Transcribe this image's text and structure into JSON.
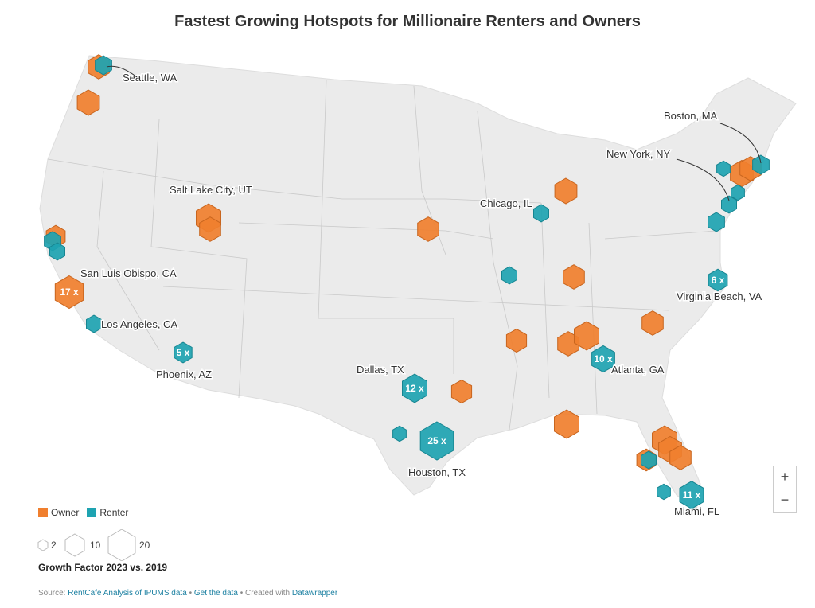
{
  "title": "Fastest Growing Hotspots for Millionaire Renters and Owners",
  "colors": {
    "owner": "#f07f2e",
    "renter": "#1ea3b1",
    "land": "#ebebeb",
    "border": "#ffffff"
  },
  "legend": {
    "owner": "Owner",
    "renter": "Renter",
    "sizes": [
      "2",
      "10",
      "20"
    ],
    "title": "Growth Factor 2023 vs. 2019"
  },
  "city_labels": [
    "Seattle, WA",
    "Salt Lake City, UT",
    "San Luis Obispo, CA",
    "Los Angeles, CA",
    "Phoenix, AZ",
    "Dallas, TX",
    "Houston, TX",
    "Chicago, IL",
    "Atlanta, GA",
    "Miami, FL",
    "Virginia Beach, VA",
    "New York, NY",
    "Boston, MA"
  ],
  "markers": [
    {
      "type": "owner",
      "value": 8
    },
    {
      "type": "renter",
      "value": 4
    },
    {
      "type": "owner",
      "value": 9
    },
    {
      "type": "owner",
      "value": 12
    },
    {
      "type": "owner",
      "value": 8
    },
    {
      "type": "owner",
      "value": 6
    },
    {
      "type": "renter",
      "value": 4
    },
    {
      "type": "renter",
      "value": 3
    },
    {
      "type": "owner",
      "value": 17,
      "label": "17 x"
    },
    {
      "type": "renter",
      "value": 3
    },
    {
      "type": "renter",
      "value": 5,
      "label": "5 x"
    },
    {
      "type": "owner",
      "value": 8
    },
    {
      "type": "renter",
      "value": 3
    },
    {
      "type": "owner",
      "value": 9
    },
    {
      "type": "renter",
      "value": 3
    },
    {
      "type": "owner",
      "value": 8
    },
    {
      "type": "owner",
      "value": 7
    },
    {
      "type": "owner",
      "value": 8
    },
    {
      "type": "owner",
      "value": 12
    },
    {
      "type": "renter",
      "value": 10,
      "label": "10 x"
    },
    {
      "type": "owner",
      "value": 8
    },
    {
      "type": "renter",
      "value": 6,
      "label": "6 x"
    },
    {
      "type": "renter",
      "value": 12,
      "label": "12 x"
    },
    {
      "type": "owner",
      "value": 7
    },
    {
      "type": "renter",
      "value": 25,
      "label": "25 x"
    },
    {
      "type": "renter",
      "value": 2
    },
    {
      "type": "owner",
      "value": 12
    },
    {
      "type": "owner",
      "value": 12
    },
    {
      "type": "owner",
      "value": 10
    },
    {
      "type": "owner",
      "value": 8
    },
    {
      "type": "owner",
      "value": 6
    },
    {
      "type": "renter",
      "value": 3
    },
    {
      "type": "renter",
      "value": 11,
      "label": "11 x"
    },
    {
      "type": "renter",
      "value": 2
    },
    {
      "type": "renter",
      "value": 3
    },
    {
      "type": "renter",
      "value": 4
    },
    {
      "type": "owner",
      "value": 10
    },
    {
      "type": "owner",
      "value": 8
    },
    {
      "type": "renter",
      "value": 4
    },
    {
      "type": "renter",
      "value": 2
    },
    {
      "type": "renter",
      "value": 2
    }
  ],
  "zoom": {
    "in": "+",
    "out": "−"
  },
  "footer": {
    "source": "Source:",
    "source_link": "RentCafe Analysis of IPUMS data",
    "sep": "•",
    "get_data": "Get the data",
    "created": "Created with",
    "tool": "Datawrapper"
  }
}
